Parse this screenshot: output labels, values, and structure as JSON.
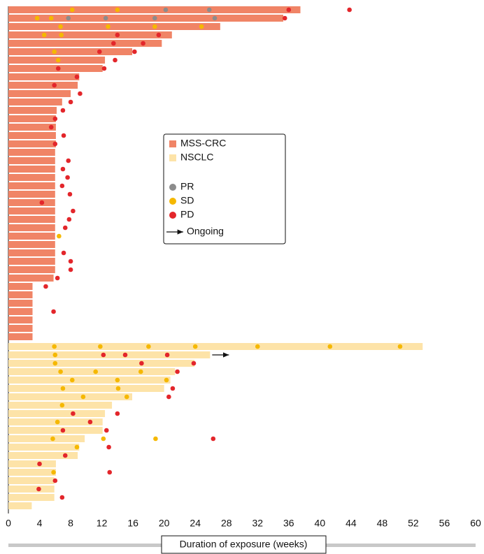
{
  "chart_data": {
    "type": "swimmer",
    "x_label": "Duration of exposure (weeks)",
    "xlim": [
      0,
      60
    ],
    "xticks": [
      0,
      4,
      8,
      12,
      16,
      20,
      24,
      28,
      32,
      36,
      40,
      44,
      48,
      52,
      56,
      60
    ],
    "responses": [
      {
        "name": "PR",
        "color": "#8c8c8c"
      },
      {
        "name": "SD",
        "color": "#f5b800"
      },
      {
        "name": "PD",
        "color": "#e3262b"
      }
    ],
    "ongoing_label": "Ongoing",
    "series": [
      {
        "name": "MSS-CRC",
        "color": "#f08466",
        "values": [
          37.5,
          35.3,
          27.2,
          21,
          19.7,
          15.9,
          12.4,
          12.1,
          9.1,
          8.9,
          8,
          6.9,
          6.2,
          6.1,
          6.1,
          6.1,
          6.1,
          6,
          6,
          6,
          6,
          6,
          6,
          6,
          6,
          6,
          6,
          6,
          6,
          6,
          6,
          6,
          5.8,
          3.1,
          3.1,
          3.1,
          3.1,
          3.1,
          3.1,
          3.1
        ],
        "events": [
          [
            [
              20.2,
              25.8
            ],
            [
              8.2,
              14
            ],
            [
              36,
              43.8
            ]
          ],
          [
            [
              7.7,
              12.5,
              18.8,
              26.5
            ],
            [
              3.7,
              5.5
            ],
            [
              35.5
            ]
          ],
          [
            [],
            [
              6.7,
              12.8,
              18.8,
              24.8
            ],
            []
          ],
          [
            [],
            [
              4.6,
              6.8
            ],
            [
              14,
              19.3
            ]
          ],
          [
            [],
            [],
            [
              13.5,
              17.3
            ]
          ],
          [
            [],
            [
              5.9
            ],
            [
              11.7,
              16.2
            ]
          ],
          [
            [],
            [
              6.4
            ],
            [
              13.7
            ]
          ],
          [
            [],
            [],
            [
              6.4,
              12.3
            ]
          ],
          [
            [],
            [],
            [
              8.8
            ]
          ],
          [
            [],
            [],
            [
              5.9
            ]
          ],
          [
            [],
            [],
            [
              9.2
            ]
          ],
          [
            [],
            [],
            [
              8
            ]
          ],
          [
            [],
            [],
            [
              7
            ]
          ],
          [
            [],
            [],
            [
              6
            ]
          ],
          [
            [],
            [],
            [
              5.5
            ]
          ],
          [
            [],
            [],
            [
              7.1
            ]
          ],
          [
            [],
            [],
            [
              6
            ]
          ],
          [
            [],
            [],
            []
          ],
          [
            [],
            [],
            [
              7.7
            ]
          ],
          [
            [],
            [],
            [
              7
            ]
          ],
          [
            [],
            [],
            [
              7.6
            ]
          ],
          [
            [],
            [],
            [
              6.9
            ]
          ],
          [
            [],
            [],
            [
              7.9
            ]
          ],
          [
            [],
            [],
            [
              4.3
            ]
          ],
          [
            [],
            [],
            [
              8.3
            ]
          ],
          [
            [],
            [],
            [
              7.8
            ]
          ],
          [
            [],
            [],
            [
              7.3
            ]
          ],
          [
            [],
            [
              6.5
            ],
            []
          ],
          [
            [],
            [],
            []
          ],
          [
            [],
            [],
            [
              7.1
            ]
          ],
          [
            [],
            [],
            [
              8
            ]
          ],
          [
            [],
            [],
            [
              8
            ]
          ],
          [
            [],
            [],
            [
              6.3
            ]
          ],
          [
            [],
            [],
            [
              4.8
            ]
          ],
          [
            [],
            [],
            []
          ],
          [
            [],
            [],
            []
          ],
          [
            [],
            [],
            [
              5.8
            ]
          ],
          [
            [],
            [],
            []
          ],
          [
            [],
            [],
            []
          ],
          [
            [],
            [],
            []
          ]
        ],
        "ongoing": []
      },
      {
        "name": "NSCLC",
        "color": "#fde3a8",
        "values": [
          53.2,
          25.9,
          23.9,
          21.4,
          20.8,
          20,
          15.9,
          13.3,
          12.4,
          12.1,
          12.1,
          9.8,
          9.1,
          8.9,
          6.1,
          6.1,
          5.9,
          5.9,
          5.9,
          3
        ],
        "events": [
          [
            [],
            [
              5.9,
              11.8,
              18,
              24,
              32,
              41.3,
              50.3
            ],
            []
          ],
          [
            [],
            [
              6
            ],
            [
              12.2,
              15,
              20.4
            ]
          ],
          [
            [],
            [
              6
            ],
            [
              17.1,
              23.8
            ]
          ],
          [
            [],
            [
              6.7,
              11.2,
              17
            ],
            [
              21.7
            ]
          ],
          [
            [],
            [
              8.2,
              14,
              20.3
            ],
            []
          ],
          [
            [],
            [
              7,
              14.1
            ],
            [
              21.1
            ]
          ],
          [
            [],
            [
              9.6,
              15.2
            ],
            [
              20.6
            ]
          ],
          [
            [],
            [
              6.9
            ],
            []
          ],
          [
            [],
            [],
            [
              8.3,
              14
            ]
          ],
          [
            [],
            [
              6.3
            ],
            [
              10.5
            ]
          ],
          [
            [],
            [],
            [
              7,
              12.6
            ]
          ],
          [
            [],
            [
              5.7,
              12.2,
              18.9
            ],
            [
              26.3
            ]
          ],
          [
            [],
            [
              8.8
            ],
            [
              12.9
            ]
          ],
          [
            [],
            [],
            [
              7.3
            ]
          ],
          [
            [],
            [],
            [
              4
            ]
          ],
          [
            [],
            [
              5.8
            ],
            [
              13
            ]
          ],
          [
            [],
            [],
            [
              6
            ]
          ],
          [
            [],
            [],
            [
              3.9
            ]
          ],
          [
            [],
            [],
            [
              6.9
            ]
          ],
          [
            [],
            [],
            []
          ]
        ],
        "ongoing": [
          1
        ]
      }
    ]
  }
}
